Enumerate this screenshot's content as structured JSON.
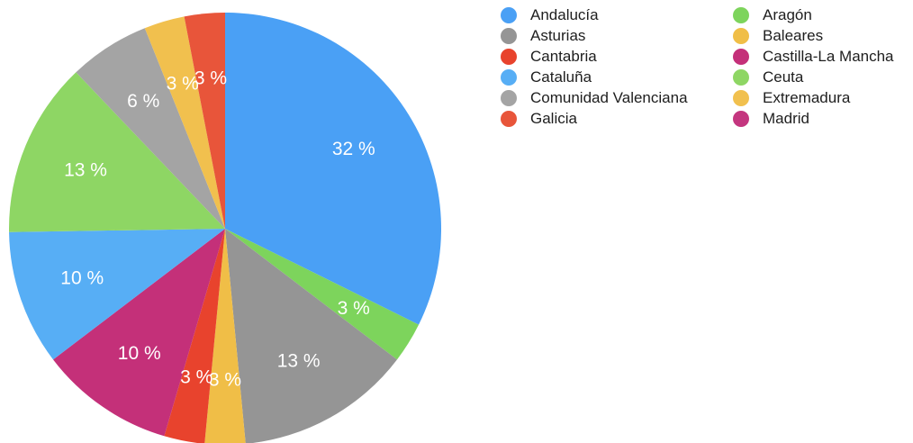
{
  "chart_data": {
    "type": "pie",
    "title": "",
    "legend_position": "top-right",
    "start": "top, clockwise",
    "slices": [
      {
        "name": "Andalucía",
        "value": 32,
        "label": "32 %",
        "color": "#4aa0f5"
      },
      {
        "name": "Aragón",
        "value": 3,
        "label": "3 %",
        "color": "#7dd45c"
      },
      {
        "name": "Asturias",
        "value": 13,
        "label": "13 %",
        "color": "#959595"
      },
      {
        "name": "Baleares",
        "value": 3,
        "label": "3 %",
        "color": "#f0be47"
      },
      {
        "name": "Cantabria",
        "value": 3,
        "label": "3 %",
        "color": "#e8432d"
      },
      {
        "name": "Castilla-La Mancha",
        "value": 10,
        "label": "10 %",
        "color": "#c43079"
      },
      {
        "name": "Cataluña",
        "value": 10,
        "label": "10 %",
        "color": "#57aef5"
      },
      {
        "name": "Ceuta",
        "value": 13,
        "label": "13 %",
        "color": "#8ed664"
      },
      {
        "name": "Comunidad Valenciana",
        "value": 6,
        "label": "6 %",
        "color": "#a4a4a4"
      },
      {
        "name": "Extremadura",
        "value": 3,
        "label": "3 %",
        "color": "#f1c04e"
      },
      {
        "name": "Galicia",
        "value": 3,
        "label": "3 %",
        "color": "#e8553a"
      }
    ],
    "legend": [
      {
        "name": "Andalucía",
        "color": "#4aa0f5"
      },
      {
        "name": "Aragón",
        "color": "#7dd45c"
      },
      {
        "name": "Asturias",
        "color": "#959595"
      },
      {
        "name": "Baleares",
        "color": "#f0be47"
      },
      {
        "name": "Cantabria",
        "color": "#e8432d"
      },
      {
        "name": "Castilla-La Mancha",
        "color": "#c43079"
      },
      {
        "name": "Cataluña",
        "color": "#57aef5"
      },
      {
        "name": "Ceuta",
        "color": "#8ed664"
      },
      {
        "name": "Comunidad Valenciana",
        "color": "#a4a4a4"
      },
      {
        "name": "Extremadura",
        "color": "#f1c04e"
      },
      {
        "name": "Galicia",
        "color": "#e8553a"
      },
      {
        "name": "Madrid",
        "color": "#c4367f"
      }
    ]
  }
}
